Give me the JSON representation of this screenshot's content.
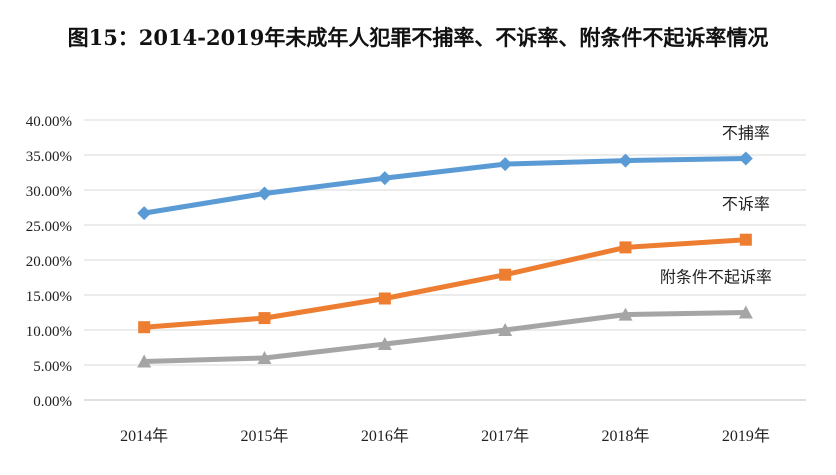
{
  "chart_data": {
    "type": "line",
    "title": "图15：2014-2019年未成年人犯罪不捕率、不诉率、附条件不起诉率情况",
    "categories": [
      "2014年",
      "2015年",
      "2016年",
      "2017年",
      "2018年",
      "2019年"
    ],
    "yticks": [
      "0.00%",
      "5.00%",
      "10.00%",
      "15.00%",
      "20.00%",
      "25.00%",
      "30.00%",
      "35.00%",
      "40.00%"
    ],
    "ylim": [
      0,
      40
    ],
    "grid": true,
    "legend": "inline-labels",
    "series": [
      {
        "name": "不捕率",
        "values": [
          26.7,
          29.5,
          31.7,
          33.7,
          34.2,
          34.5
        ],
        "color": "#5b9bd5",
        "marker": "diamond"
      },
      {
        "name": "不诉率",
        "values": [
          10.4,
          11.7,
          14.5,
          17.9,
          21.8,
          22.9
        ],
        "color": "#ed7d31",
        "marker": "square"
      },
      {
        "name": "附条件不起诉率",
        "values": [
          5.5,
          6.0,
          8.0,
          10.0,
          12.2,
          12.5
        ],
        "color": "#a5a5a5",
        "marker": "triangle"
      }
    ]
  }
}
